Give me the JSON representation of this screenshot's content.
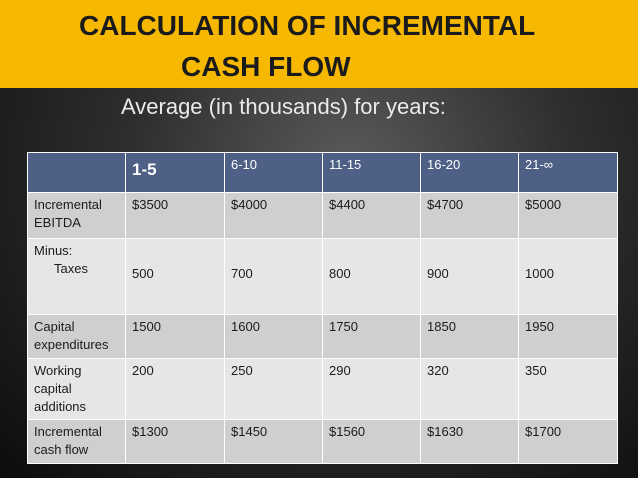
{
  "slide": {
    "title_line1": "CALCULATION  OF INCREMENTAL",
    "title_line2": "CASH  FLOW",
    "subtitle": "Average (in thousands) for years:"
  },
  "table": {
    "corner": "",
    "columns": [
      "1-5",
      "6-10",
      "11-15",
      "16-20",
      "21-∞"
    ],
    "rows": [
      {
        "label": [
          "Incremental",
          "EBITDA"
        ],
        "values": [
          "$3500",
          "$4000",
          "$4400",
          "$4700",
          "$5000"
        ]
      },
      {
        "label": [
          "Minus:",
          "Taxes"
        ],
        "values": [
          "500",
          "700",
          "800",
          "900",
          "1000"
        ]
      },
      {
        "label": [
          "Capital",
          "expenditures"
        ],
        "values": [
          "1500",
          "1600",
          "1750",
          "1850",
          "1950"
        ]
      },
      {
        "label": [
          "Working",
          "capital",
          "additions"
        ],
        "values": [
          "200",
          "250",
          "290",
          "320",
          "350"
        ]
      },
      {
        "label": [
          "Incremental",
          "cash flow"
        ],
        "values": [
          "$1300",
          "$1450",
          "$1560",
          "$1630",
          "$1700"
        ]
      }
    ]
  },
  "colors": {
    "title_band": "#f6b800",
    "header_row": "#4f6087",
    "row_dark": "#cfcfcf",
    "row_light": "#e6e6e6"
  }
}
